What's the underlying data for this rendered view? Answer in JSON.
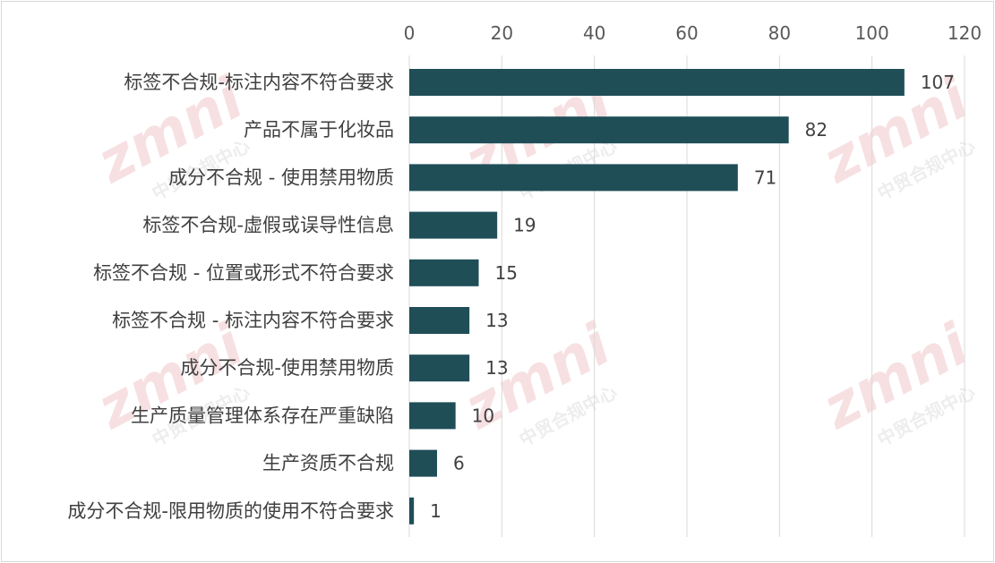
{
  "chart_data": {
    "type": "bar",
    "orientation": "horizontal",
    "title": "",
    "xlabel": "",
    "ylabel": "",
    "xlim": [
      0,
      120
    ],
    "x_ticks": [
      0,
      20,
      40,
      60,
      80,
      100,
      120
    ],
    "x_axis_position": "top",
    "grid": true,
    "legend": "none",
    "bar_color": "#1f4e57",
    "categories": [
      "标签不合规-标注内容不符合要求",
      "产品不属于化妆品",
      "成分不合规 - 使用禁用物质",
      "标签不合规-虚假或误导性信息",
      "标签不合规 - 位置或形式不符合要求",
      "标签不合规 - 标注内容不符合要求",
      "成分不合规-使用禁用物质",
      "生产质量管理体系存在严重缺陷",
      "生产资质不合规",
      "成分不合规-限用物质的使用不符合要求"
    ],
    "values": [
      107,
      82,
      71,
      19,
      15,
      13,
      13,
      10,
      6,
      1
    ]
  },
  "watermark": {
    "logo_text": "zmni",
    "caption": "中贸合规中心",
    "color": "#e8a0a8"
  }
}
